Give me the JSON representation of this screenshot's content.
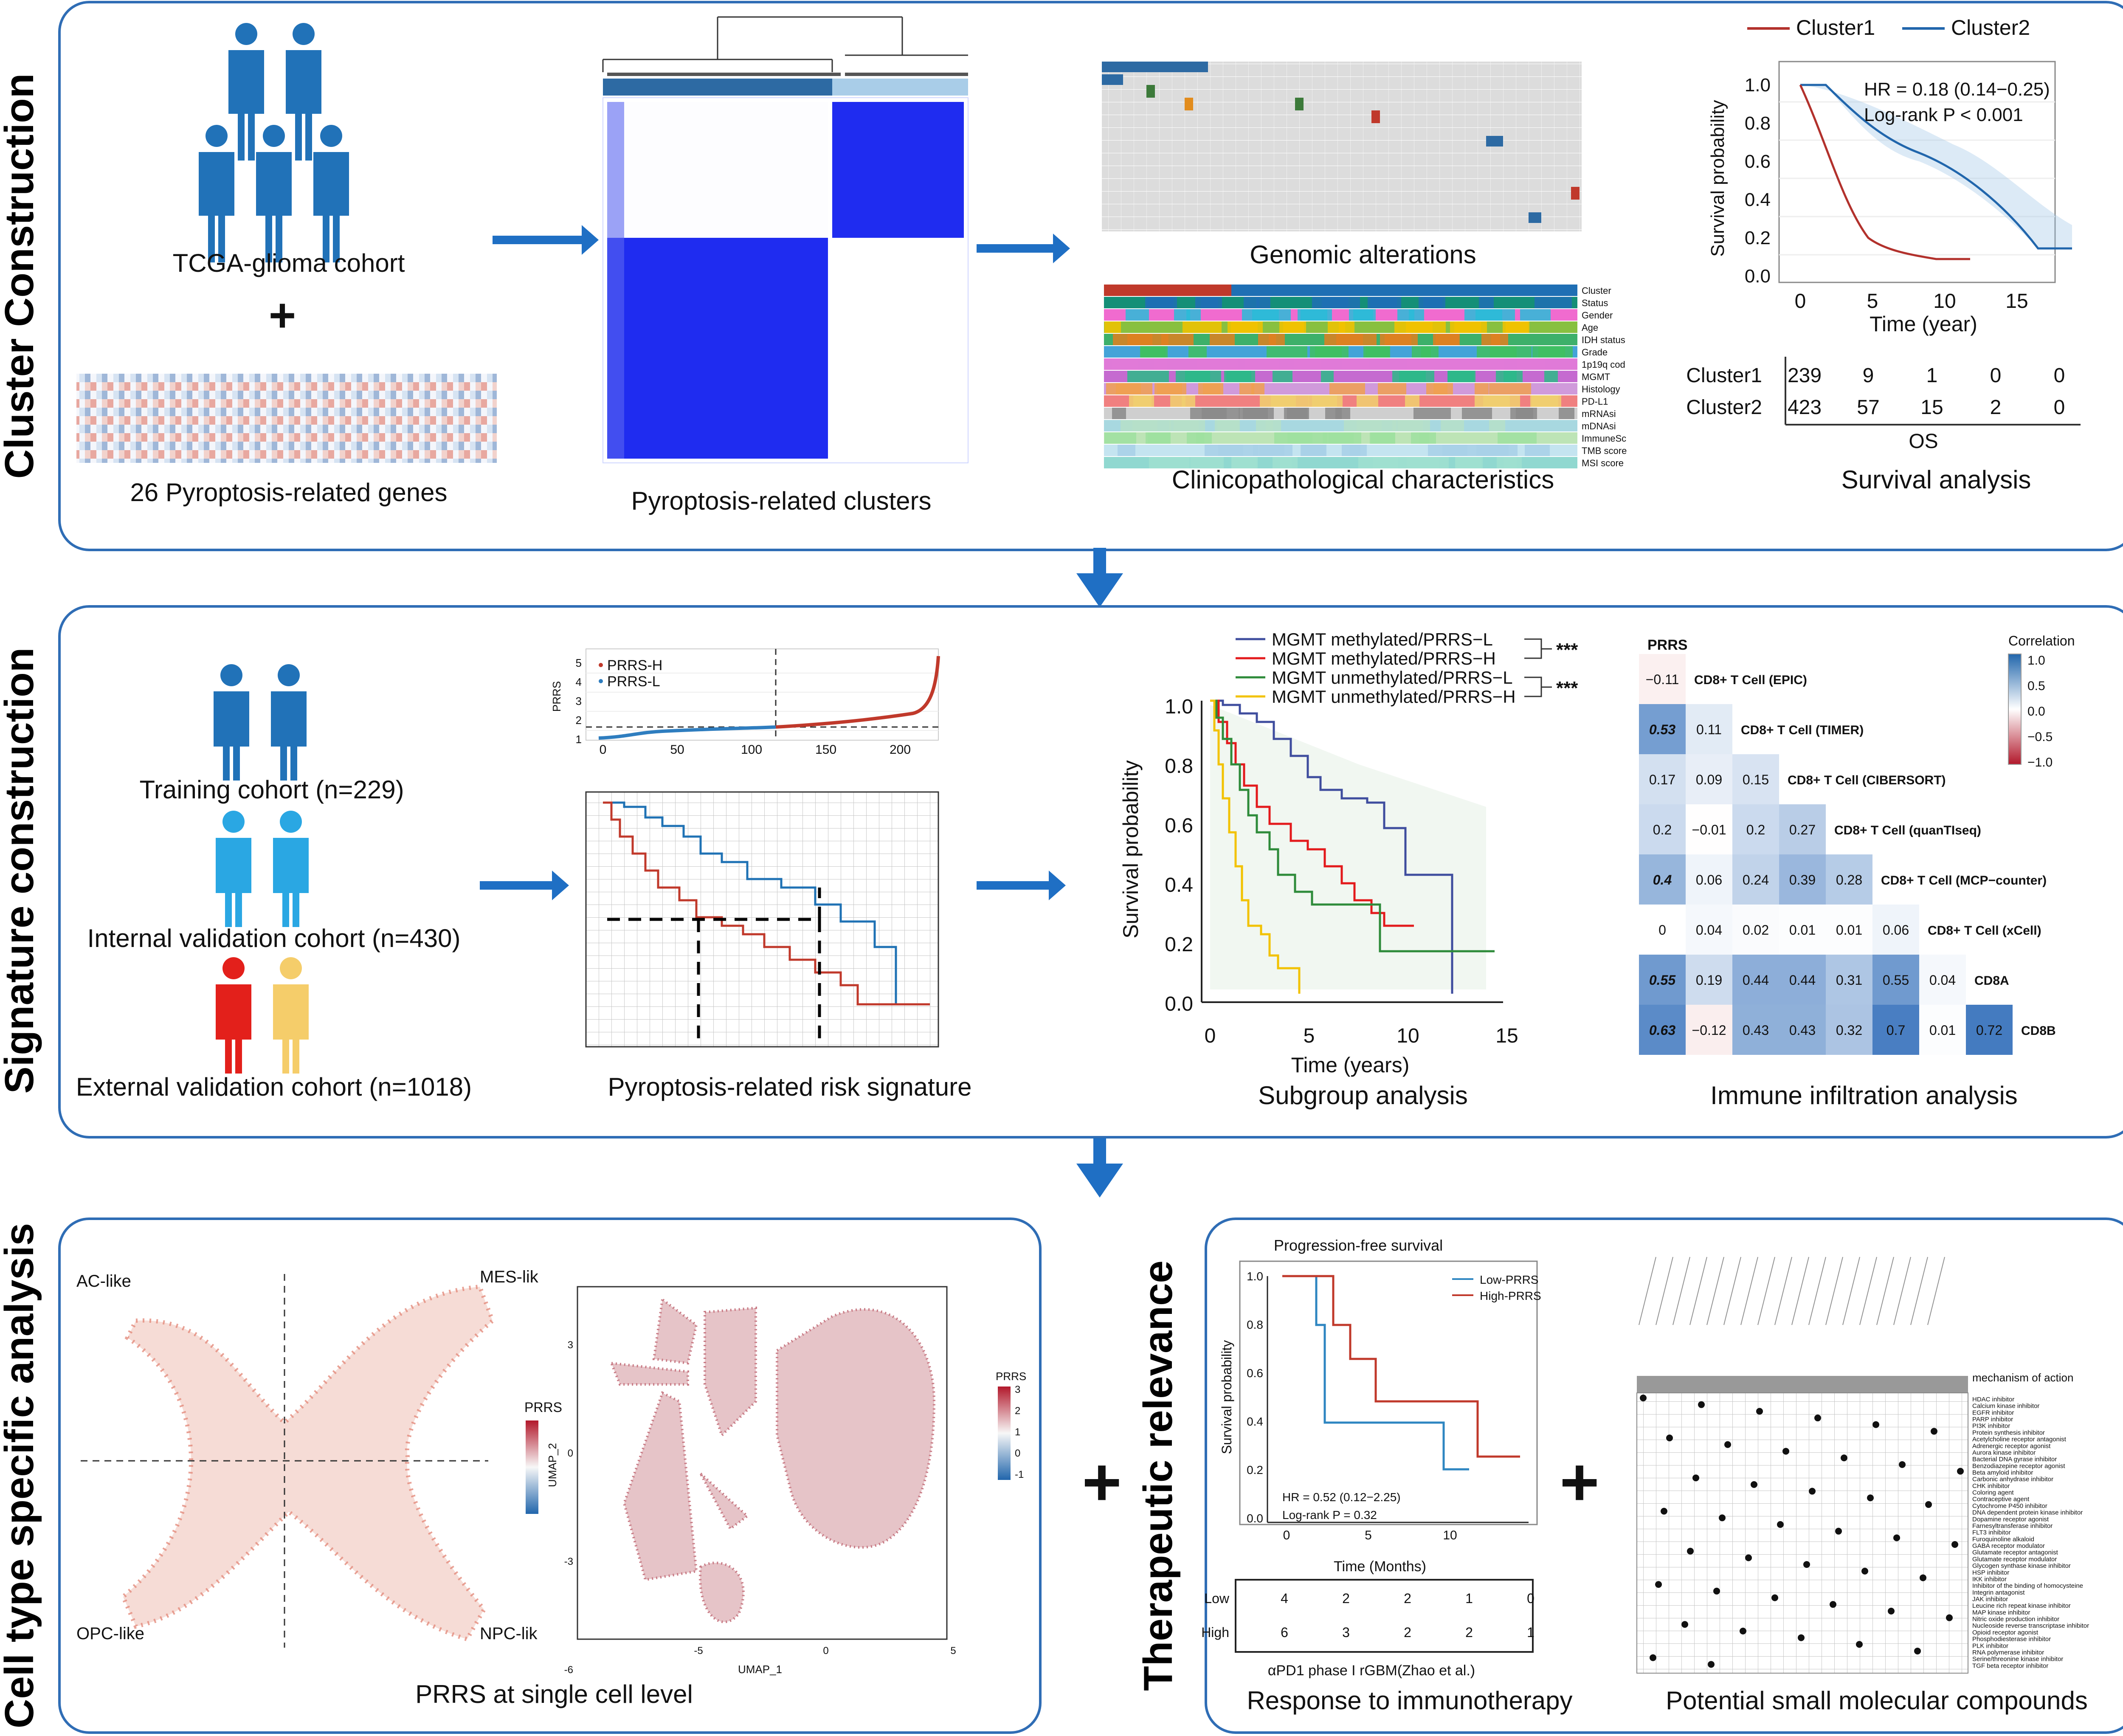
{
  "sections": {
    "cluster_title": "Cluster Construction",
    "signature_title": "Signature construction",
    "celltype_title": "Cell type specific analysis",
    "therapeutic_title": "Therapeutic relevance"
  },
  "cluster": {
    "cohort_label": "TCGA-glioma cohort",
    "genes_label": "26 Pyroptosis-related genes",
    "clusters_label": "Pyroptosis-related clusters",
    "genomic_label": "Genomic alterations",
    "clinico_label": "Clinicopathological characteristics",
    "clinico_tracks": [
      "Cluster",
      "Status",
      "Gender",
      "Age",
      "IDH status",
      "Grade",
      "1p19q cod",
      "MGMT",
      "Histology",
      "PD-L1",
      "mRNAsi",
      "mDNAsi",
      "ImmuneSc",
      "TMB score",
      "MSI score"
    ],
    "survival": {
      "legend": [
        "Cluster1",
        "Cluster2"
      ],
      "hr": "HR = 0.18 (0.14−0.25)",
      "logrank": "Log-rank P < 0.001",
      "ylabel": "Survival probability",
      "xlabel": "Time (year)",
      "yticks": [
        "1.0",
        "0.8",
        "0.6",
        "0.4",
        "0.2",
        "0.0"
      ],
      "xticks": [
        "0",
        "5",
        "10",
        "15"
      ],
      "risk_rows": [
        {
          "name": "Cluster1",
          "values": [
            "239",
            "9",
            "1",
            "0",
            "0"
          ]
        },
        {
          "name": "Cluster2",
          "values": [
            "423",
            "57",
            "15",
            "2",
            "0"
          ]
        }
      ],
      "risk_footer": "OS",
      "caption": "Survival analysis"
    }
  },
  "signature": {
    "training": "Training cohort (n=229)",
    "internal": "Internal validation cohort (n=430)",
    "external": "External validation cohort (n=1018)",
    "risk_plot": {
      "ylabel": "PRRS",
      "legend_h": "PRRS-H",
      "legend_l": "PRRS-L",
      "yticks": [
        "5",
        "4",
        "3",
        "2",
        "1"
      ],
      "xticks": [
        "0",
        "50",
        "100",
        "150",
        "200"
      ],
      "caption": "Pyroptosis-related risk signature"
    },
    "subgroup": {
      "legend": [
        "MGMT methylated/PRRS−L",
        "MGMT methylated/PRRS−H",
        "MGMT unmethylated/PRRS−L",
        "MGMT unmethylated/PRRS−H"
      ],
      "sig": "***",
      "ylabel": "Survival probability",
      "xlabel": "Time (years)",
      "yticks": [
        "1.0",
        "0.8",
        "0.6",
        "0.4",
        "0.2",
        "0.0"
      ],
      "xticks": [
        "0",
        "5",
        "10",
        "15"
      ],
      "caption": "Subgroup analysis"
    },
    "immune": {
      "header": "PRRS",
      "legend_title": "Correlation",
      "legend_ticks": [
        "1.0",
        "0.5",
        "0.0",
        "−0.5",
        "−1.0"
      ],
      "rows": [
        {
          "label": "CD8+ T Cell (EPIC)",
          "values": [
            "−0.11"
          ]
        },
        {
          "label": "CD8+ T Cell (TIMER)",
          "values": [
            "0.53",
            "0.11"
          ]
        },
        {
          "label": "CD8+ T Cell (CIBERSORT)",
          "values": [
            "0.17",
            "0.09",
            "0.15"
          ]
        },
        {
          "label": "CD8+ T Cell (quanTIseq)",
          "values": [
            "0.2",
            "−0.01",
            "0.2",
            "0.27"
          ]
        },
        {
          "label": "CD8+ T Cell (MCP−counter)",
          "values": [
            "0.4",
            "0.06",
            "0.24",
            "0.39",
            "0.28"
          ]
        },
        {
          "label": "CD8+ T Cell (xCell)",
          "values": [
            "0",
            "0.04",
            "0.02",
            "0.01",
            "0.01",
            "0.06"
          ]
        },
        {
          "label": "CD8A",
          "values": [
            "0.55",
            "0.19",
            "0.44",
            "0.44",
            "0.31",
            "0.55",
            "0.04"
          ]
        },
        {
          "label": "CD8B",
          "values": [
            "0.63",
            "−0.12",
            "0.43",
            "0.43",
            "0.32",
            "0.7",
            "0.01",
            "0.72"
          ]
        }
      ],
      "caption": "Immune infiltration analysis"
    }
  },
  "celltype": {
    "quadrants": [
      "AC-like",
      "MES-lik",
      "OPC-like",
      "NPC-lik"
    ],
    "scatter_legend": "PRRS",
    "umap": {
      "xlabel": "UMAP_1",
      "ylabel": "UMAP_2",
      "xticks": [
        "-5",
        "0",
        "5"
      ],
      "yticks": [
        "3",
        "0",
        "-3",
        "-6"
      ],
      "legend_title": "PRRS",
      "legend_ticks": [
        "3",
        "2",
        "1",
        "0",
        "-1"
      ]
    },
    "caption": "PRRS at single cell level"
  },
  "therapeutic": {
    "pfs": {
      "title": "Progression-free survival",
      "legend": [
        "Low-PRRS",
        "High-PRRS"
      ],
      "hr": "HR = 0.52 (0.12−2.25)",
      "logrank": "Log-rank P = 0.32",
      "ylabel": "Survival probability",
      "xlabel": "Time (Months)",
      "yticks": [
        "1.0",
        "0.8",
        "0.6",
        "0.4",
        "0.2",
        "0.0"
      ],
      "xticks": [
        "0",
        "5",
        "10"
      ],
      "risk_rows": [
        {
          "name": "Low",
          "values": [
            "4",
            "2",
            "2",
            "1",
            "0"
          ]
        },
        {
          "name": "High",
          "values": [
            "6",
            "3",
            "2",
            "2",
            "1"
          ]
        }
      ],
      "study": "αPD1 phase I rGBM(Zhao et al.)",
      "caption": "Response to immunotherapy"
    },
    "compounds": {
      "moa_header": "mechanism of action",
      "moa": [
        "HDAC inhibitor",
        "Calcium kinase inhibitor",
        "EGFR inhibitor",
        "PARP inhibitor",
        "PI3K inhibitor",
        "Protein synthesis inhibitor",
        "Acetylcholine receptor antagonist",
        "Adrenergic receptor agonist",
        "Aurora kinase inhibitor",
        "Bacterial DNA gyrase inhibitor",
        "Benzodiazepine receptor agonist",
        "Beta amyloid inhibitor",
        "Carbonic anhydrase inhibitor",
        "CHK inhibitor",
        "Coloring agent",
        "Contraceptive agent",
        "Cytochrome P450 inhibitor",
        "DNA dependent protein kinase inhibitor",
        "Dopamine receptor agonist",
        "Farnesyltransferase inhibitor",
        "FLT3 inhibitor",
        "Furoquinoline alkaloid",
        "GABA receptor modulator",
        "Glutamate receptor antagonist",
        "Glutamate receptor modulator",
        "Glycogen synthase kinase inhibitor",
        "HSP inhibitor",
        "IKK inhibitor",
        "Inhibitor of the binding of homocysteine",
        "Integrin antagonist",
        "JAK inhibitor",
        "Leucine rich repeat kinase inhibitor",
        "MAP kinase inhibitor",
        "Nitric oxide production inhibitor",
        "Nucleoside reverse transcriptase inhibitor",
        "Opioid receptor agonist",
        "Phosphodiesterase inhibitor",
        "PLK inhibitor",
        "RNA polymerase inhibitor",
        "Serine/threonine kinase inhibitor",
        "TGF beta receptor inhibitor"
      ],
      "caption": "Potential small molecular compounds"
    }
  },
  "plus_sign": "+",
  "colors": {
    "panel_border": "#2f6db5",
    "arrow": "#1f6fc4",
    "cluster1": "#b2312c",
    "cluster2": "#2166ac",
    "prrs_h": "#c0392b",
    "prrs_l": "#2e7dbf",
    "km_blue": "#3f4d9e",
    "km_red": "#e31a1c",
    "km_green": "#2e8b3a",
    "km_yellow": "#f2c200"
  }
}
